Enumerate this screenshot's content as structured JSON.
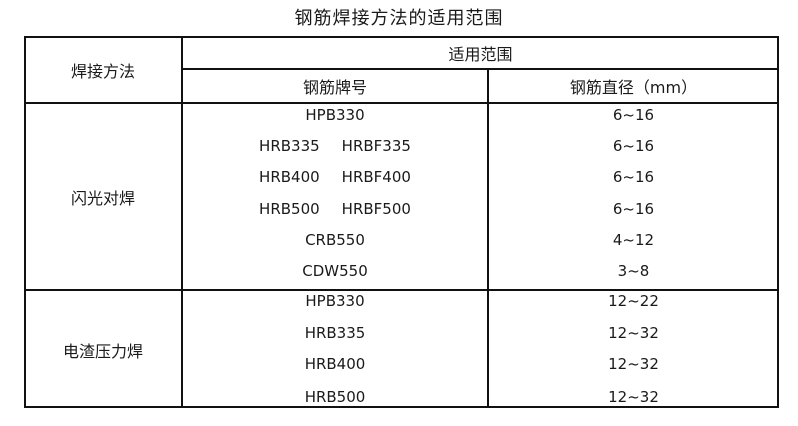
{
  "title": "钢筋焊接方法的适用范围",
  "header": {
    "method": "焊接方法",
    "scope": "适用范围",
    "grade": "钢筋牌号",
    "diameter": "钢筋直径（mm）"
  },
  "groups": [
    {
      "method": "闪光对焊",
      "rows": [
        {
          "grades": [
            "HPB330"
          ],
          "diameter": "6~16"
        },
        {
          "grades": [
            "HRB335",
            "HRBF335"
          ],
          "diameter": "6~16"
        },
        {
          "grades": [
            "HRB400",
            "HRBF400"
          ],
          "diameter": "6~16"
        },
        {
          "grades": [
            "HRB500",
            "HRBF500"
          ],
          "diameter": "6~16"
        },
        {
          "grades": [
            "CRB550"
          ],
          "diameter": "4~12"
        },
        {
          "grades": [
            "CDW550"
          ],
          "diameter": "3~8"
        }
      ]
    },
    {
      "method": "电渣压力焊",
      "rows": [
        {
          "grades": [
            "HPB330"
          ],
          "diameter": "12~22"
        },
        {
          "grades": [
            "HRB335"
          ],
          "diameter": "12~32"
        },
        {
          "grades": [
            "HRB400"
          ],
          "diameter": "12~32"
        },
        {
          "grades": [
            "HRB500"
          ],
          "diameter": "12~32"
        }
      ]
    }
  ]
}
